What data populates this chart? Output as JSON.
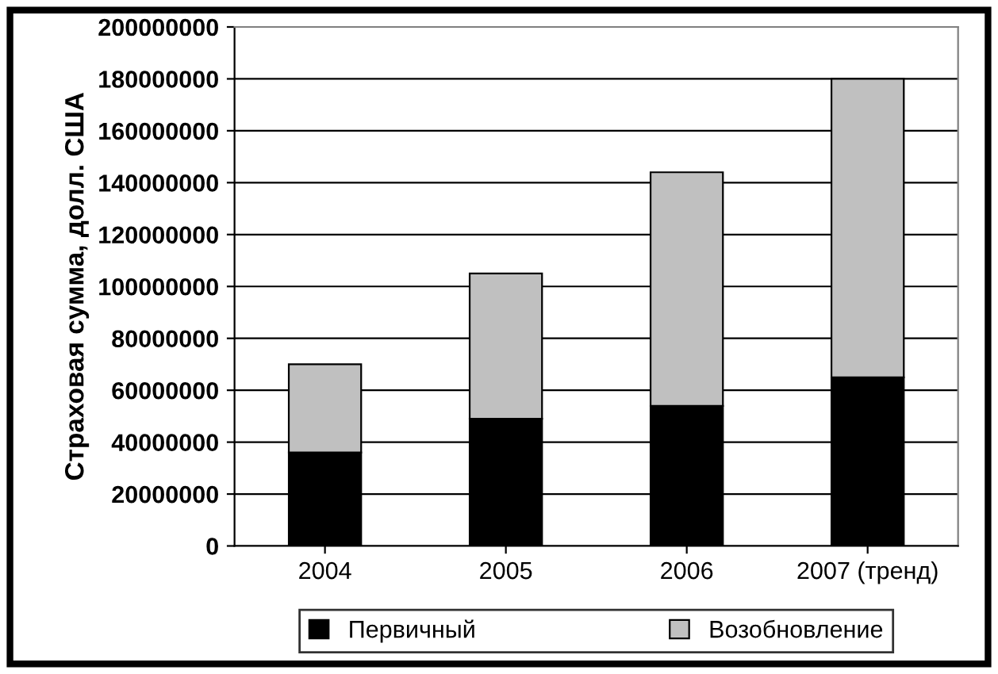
{
  "chart_data": {
    "type": "bar",
    "stacked": true,
    "ylabel": "Страховая сумма, долл. США",
    "categories": [
      "2004",
      "2005",
      "2006",
      "2007 (тренд)"
    ],
    "series": [
      {
        "name": "Первичный",
        "color": "#000000",
        "values": [
          36000000,
          49000000,
          54000000,
          65000000
        ]
      },
      {
        "name": "Возобновление",
        "color": "#c0c0c0",
        "values": [
          34000000,
          56000000,
          90000000,
          115000000
        ]
      }
    ],
    "ylim": [
      0,
      200000000
    ],
    "yticks": [
      0,
      20000000,
      40000000,
      60000000,
      80000000,
      100000000,
      120000000,
      140000000,
      160000000,
      180000000,
      200000000
    ],
    "grid": "y",
    "legend": "bottom"
  }
}
